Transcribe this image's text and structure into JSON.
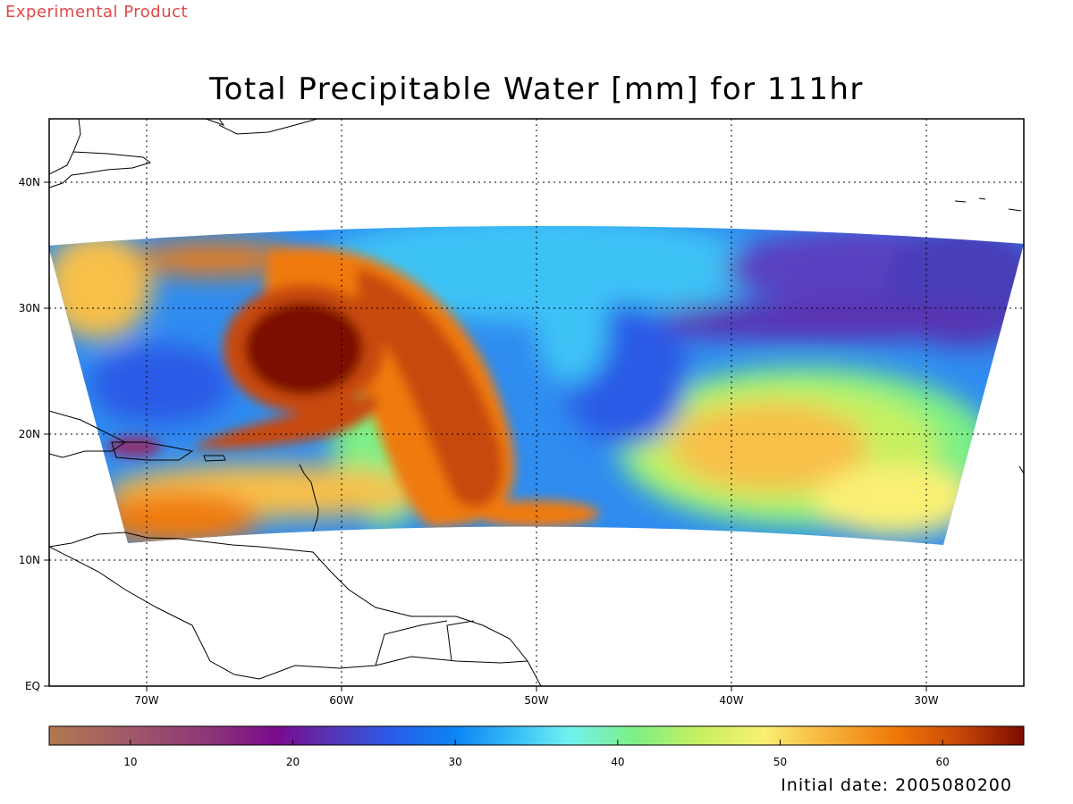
{
  "header": {
    "banner": "Experimental Product",
    "title": "Total Precipitable Water [mm] for 111hr"
  },
  "map": {
    "region": "western North Atlantic and Caribbean",
    "lon_range": [
      -75,
      -25
    ],
    "lat_range": [
      0,
      45
    ],
    "gridlines": "dotted",
    "lat_ticks": [
      {
        "value": 0,
        "label": "EQ"
      },
      {
        "value": 10,
        "label": "10N"
      },
      {
        "value": 20,
        "label": "20N"
      },
      {
        "value": 30,
        "label": "30N"
      },
      {
        "value": 40,
        "label": "40N"
      }
    ],
    "lon_ticks": [
      {
        "value": -70,
        "label": "70W"
      },
      {
        "value": -60,
        "label": "60W"
      },
      {
        "value": -50,
        "label": "50W"
      },
      {
        "value": -40,
        "label": "40W"
      },
      {
        "value": -30,
        "label": "30W"
      }
    ],
    "features": [
      {
        "name": "moist vortex core",
        "value_mm": 65,
        "lon": -62,
        "lat": 27
      },
      {
        "name": "moist tongue",
        "value_mm": 55,
        "lon": -52,
        "lat": 21
      },
      {
        "name": "moist spiral band",
        "value_mm": 58,
        "lon": -63,
        "lat": 20
      },
      {
        "name": "dry zone",
        "value_mm": 22,
        "lon": -35,
        "lat": 30
      },
      {
        "name": "moderately moist area",
        "value_mm": 50,
        "lon": -38,
        "lat": 19
      }
    ]
  },
  "colorbar": {
    "min": 5,
    "max": 65,
    "ticks": [
      {
        "value": 10,
        "label": "10"
      },
      {
        "value": 20,
        "label": "20"
      },
      {
        "value": 30,
        "label": "30"
      },
      {
        "value": 40,
        "label": "40"
      },
      {
        "value": 50,
        "label": "50"
      },
      {
        "value": 60,
        "label": "60"
      }
    ],
    "stops": [
      {
        "value": 5,
        "color": "#b07850"
      },
      {
        "value": 10,
        "color": "#a05868"
      },
      {
        "value": 15,
        "color": "#8c3478"
      },
      {
        "value": 19,
        "color": "#7a0a8e"
      },
      {
        "value": 22,
        "color": "#5a30b0"
      },
      {
        "value": 26,
        "color": "#2a5ae6"
      },
      {
        "value": 30,
        "color": "#0b84f4"
      },
      {
        "value": 34,
        "color": "#3cc2f6"
      },
      {
        "value": 37,
        "color": "#70f2f0"
      },
      {
        "value": 41,
        "color": "#7eef86"
      },
      {
        "value": 45,
        "color": "#c6f060"
      },
      {
        "value": 49,
        "color": "#faf074"
      },
      {
        "value": 52,
        "color": "#f8c048"
      },
      {
        "value": 57,
        "color": "#f07a08"
      },
      {
        "value": 61,
        "color": "#c84808"
      },
      {
        "value": 65,
        "color": "#7c0a00"
      }
    ]
  },
  "footer": {
    "initial_date": "Initial date: 2005080200"
  }
}
